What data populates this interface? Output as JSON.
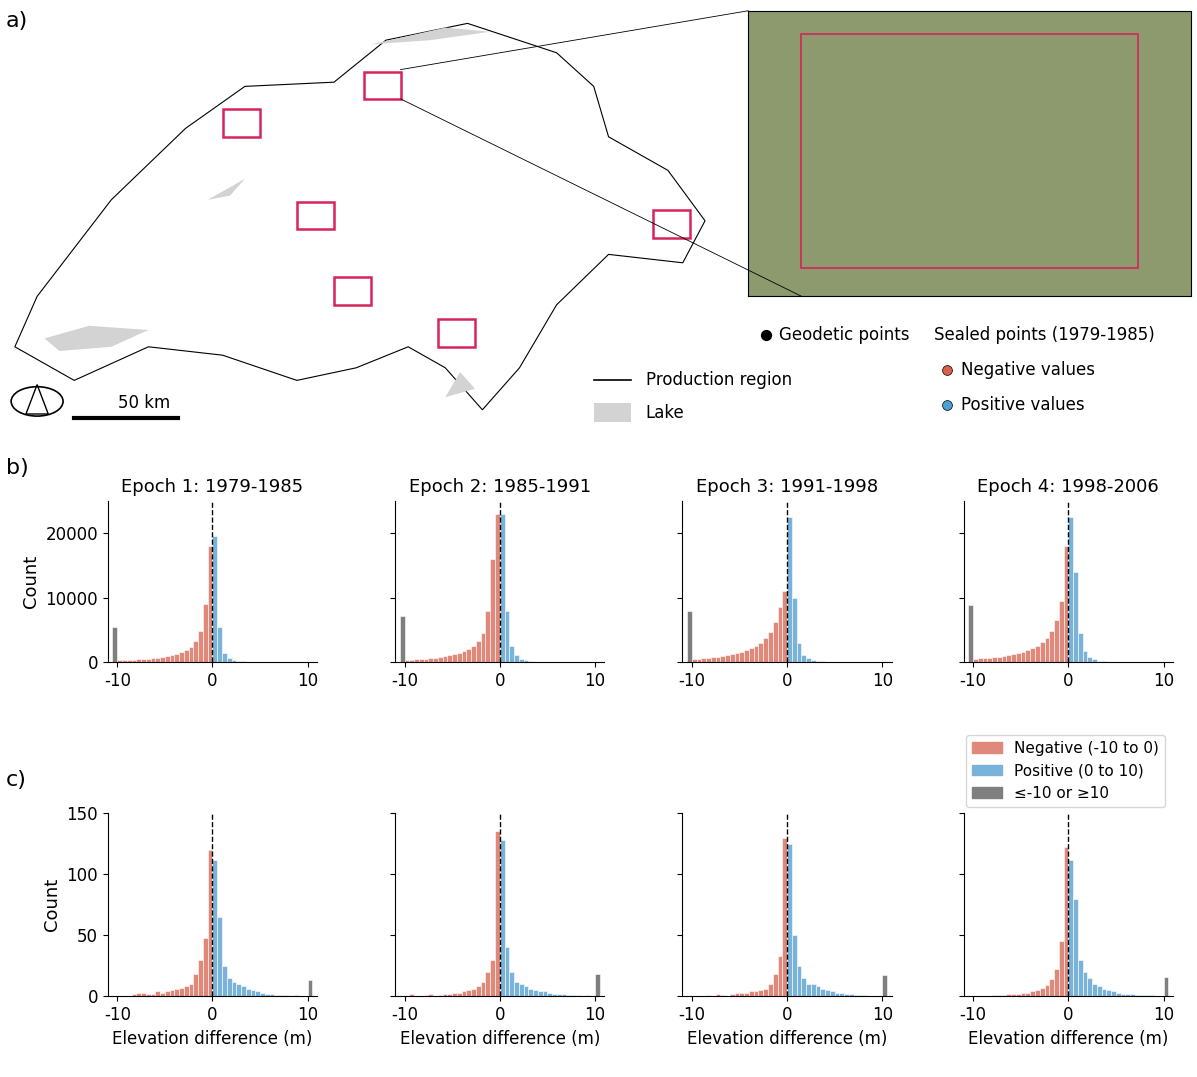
{
  "panel_labels": [
    "a)",
    "b)",
    "c)"
  ],
  "map": {
    "type": "map",
    "geodetic_label": "Geodetic points",
    "sealed_title": "Sealed points (1979-1985)",
    "negative_label": "Negative values",
    "positive_label": "Positive values",
    "region_label": "Production region",
    "lake_label": "Lake",
    "scale_bar": "50 km",
    "negative_color": "#d9604a",
    "positive_color": "#4a9fd4",
    "geodetic_color": "#000000",
    "lake_color": "#d3d3d3",
    "box_color": "#d6245c"
  },
  "chart_data": [
    {
      "type": "histogram",
      "title": "Epoch 1: 1979-1985",
      "ylabel": "Count",
      "xlim": [
        -11,
        11
      ],
      "xticks": [
        -10,
        0,
        10
      ],
      "ylim": [
        0,
        25000
      ],
      "yticks": [
        0,
        10000,
        20000
      ],
      "reference_line": 0,
      "series": [
        {
          "color": "#e0897b",
          "bins": [
            -10,
            -9.5,
            -9,
            -8.5,
            -8,
            -7.5,
            -7,
            -6.5,
            -6,
            -5.5,
            -5,
            -4.5,
            -4,
            -3.5,
            -3,
            -2.5,
            -2,
            -1.5,
            -1,
            -0.5,
            0
          ],
          "counts": [
            300,
            300,
            350,
            400,
            450,
            500,
            550,
            650,
            750,
            850,
            1000,
            1150,
            1300,
            1550,
            1900,
            2400,
            3300,
            4800,
            9000,
            18000
          ]
        },
        {
          "color": "#7ab3d9",
          "bins": [
            0,
            0.5,
            1,
            1.5,
            2,
            2.5,
            3,
            3.5,
            4,
            4.5,
            5,
            5.5,
            6,
            6.5,
            7,
            7.5,
            8,
            8.5,
            9,
            9.5,
            10
          ],
          "counts": [
            19500,
            5500,
            1500,
            700,
            400,
            250,
            150,
            100,
            70,
            50,
            40,
            30,
            20,
            15,
            10,
            10,
            5,
            5,
            5,
            5
          ]
        },
        {
          "color": "#7f7f7f",
          "bins": [
            -10.5,
            -10
          ],
          "counts": [
            5500
          ]
        }
      ]
    },
    {
      "type": "histogram",
      "title": "Epoch 2: 1985-1991",
      "tick_labels": "x",
      "xlim": [
        -11,
        11
      ],
      "xticks": [
        -10,
        0,
        10
      ],
      "ylim": [
        0,
        25000
      ],
      "yticks": [
        0,
        10000,
        20000
      ],
      "reference_line": 0,
      "series": [
        {
          "color": "#e0897b",
          "bins": [
            -10,
            -9.5,
            -9,
            -8.5,
            -8,
            -7.5,
            -7,
            -6.5,
            -6,
            -5.5,
            -5,
            -4.5,
            -4,
            -3.5,
            -3,
            -2.5,
            -2,
            -1.5,
            -1,
            -0.5,
            0
          ],
          "counts": [
            400,
            430,
            470,
            520,
            580,
            650,
            730,
            830,
            950,
            1100,
            1250,
            1450,
            1700,
            2050,
            2500,
            3300,
            4500,
            8000,
            16000,
            23000
          ]
        },
        {
          "color": "#7ab3d9",
          "bins": [
            0,
            0.5,
            1,
            1.5,
            2,
            2.5,
            3,
            3.5,
            4,
            4.5,
            5,
            5.5,
            6,
            6.5,
            7,
            7.5,
            8,
            8.5,
            9,
            9.5,
            10
          ],
          "counts": [
            23000,
            8000,
            2500,
            1100,
            550,
            300,
            200,
            130,
            90,
            60,
            40,
            30,
            25,
            20,
            15,
            10,
            10,
            5,
            5,
            5
          ]
        },
        {
          "color": "#7f7f7f",
          "bins": [
            -10.5,
            -10
          ],
          "counts": [
            7200
          ]
        }
      ]
    },
    {
      "type": "histogram",
      "title": "Epoch 3: 1991-1998",
      "tick_labels": "x",
      "xlim": [
        -11,
        11
      ],
      "xticks": [
        -10,
        0,
        10
      ],
      "ylim": [
        0,
        25000
      ],
      "yticks": [
        0,
        10000,
        20000
      ],
      "reference_line": 0,
      "series": [
        {
          "color": "#e0897b",
          "bins": [
            -10,
            -9.5,
            -9,
            -8.5,
            -8,
            -7.5,
            -7,
            -6.5,
            -6,
            -5.5,
            -5,
            -4.5,
            -4,
            -3.5,
            -3,
            -2.5,
            -2,
            -1.5,
            -1,
            -0.5,
            0
          ],
          "counts": [
            500,
            550,
            600,
            680,
            760,
            850,
            950,
            1080,
            1230,
            1400,
            1600,
            1850,
            2150,
            2500,
            3000,
            3700,
            4700,
            6200,
            8500,
            11000
          ]
        },
        {
          "color": "#7ab3d9",
          "bins": [
            0,
            0.5,
            1,
            1.5,
            2,
            2.5,
            3,
            3.5,
            4,
            4.5,
            5,
            5.5,
            6,
            6.5,
            7,
            7.5,
            8,
            8.5,
            9,
            9.5,
            10
          ],
          "counts": [
            22500,
            10000,
            3000,
            1200,
            600,
            350,
            220,
            150,
            100,
            70,
            50,
            35,
            25,
            20,
            15,
            10,
            10,
            5,
            5,
            5
          ]
        },
        {
          "color": "#7f7f7f",
          "bins": [
            -10.5,
            -10
          ],
          "counts": [
            8000
          ]
        }
      ]
    },
    {
      "type": "histogram",
      "title": "Epoch 4: 1998-2006",
      "tick_labels": "x",
      "xlim": [
        -11,
        11
      ],
      "xticks": [
        -10,
        0,
        10
      ],
      "ylim": [
        0,
        25000
      ],
      "yticks": [
        0,
        10000,
        20000
      ],
      "reference_line": 0,
      "series": [
        {
          "color": "#e0897b",
          "bins": [
            -10,
            -9.5,
            -9,
            -8.5,
            -8,
            -7.5,
            -7,
            -6.5,
            -6,
            -5.5,
            -5,
            -4.5,
            -4,
            -3.5,
            -3,
            -2.5,
            -2,
            -1.5,
            -1,
            -0.5,
            0
          ],
          "counts": [
            550,
            600,
            660,
            730,
            810,
            900,
            1000,
            1130,
            1280,
            1450,
            1650,
            1900,
            2200,
            2600,
            3100,
            3800,
            4800,
            6500,
            9500,
            18000
          ]
        },
        {
          "color": "#7ab3d9",
          "bins": [
            0,
            0.5,
            1,
            1.5,
            2,
            2.5,
            3,
            3.5,
            4,
            4.5,
            5,
            5.5,
            6,
            6.5,
            7,
            7.5,
            8,
            8.5,
            9,
            9.5,
            10
          ],
          "counts": [
            22500,
            14000,
            4500,
            1800,
            800,
            450,
            280,
            180,
            120,
            80,
            55,
            40,
            30,
            20,
            15,
            10,
            10,
            5,
            5,
            5
          ]
        },
        {
          "color": "#7f7f7f",
          "bins": [
            -10.5,
            -10
          ],
          "counts": [
            8800
          ]
        }
      ]
    },
    {
      "type": "histogram",
      "xlabel": "Elevation difference (m)",
      "ylabel": "Count",
      "xlim": [
        -11,
        11
      ],
      "xticks": [
        -10,
        0,
        10
      ],
      "ylim": [
        0,
        150
      ],
      "yticks": [
        0,
        50,
        100,
        150
      ],
      "reference_line": 0,
      "series": [
        {
          "color": "#e0897b",
          "bins": [
            -10,
            -9.5,
            -9,
            -8.5,
            -8,
            -7.5,
            -7,
            -6.5,
            -6,
            -5.5,
            -5,
            -4.5,
            -4,
            -3.5,
            -3,
            -2.5,
            -2,
            -1.5,
            -1,
            -0.5,
            0
          ],
          "counts": [
            0,
            0,
            0,
            2,
            3,
            3,
            2,
            2,
            4,
            3,
            4,
            5,
            6,
            7,
            8,
            10,
            18,
            30,
            48,
            120
          ]
        },
        {
          "color": "#7ab3d9",
          "bins": [
            0,
            0.5,
            1,
            1.5,
            2,
            2.5,
            3,
            3.5,
            4,
            4.5,
            5,
            5.5,
            6,
            6.5,
            7,
            7.5,
            8,
            8.5,
            9,
            9.5,
            10
          ],
          "counts": [
            112,
            65,
            25,
            15,
            12,
            10,
            8,
            6,
            5,
            4,
            3,
            2,
            2,
            1,
            1,
            1,
            0,
            1,
            0,
            0
          ]
        },
        {
          "color": "#7f7f7f",
          "bins": [
            10,
            10.5
          ],
          "counts": [
            13
          ]
        }
      ]
    },
    {
      "type": "histogram",
      "xlabel": "Elevation difference (m)",
      "tick_labels": "x",
      "xlim": [
        -11,
        11
      ],
      "xticks": [
        -10,
        0,
        10
      ],
      "ylim": [
        0,
        150
      ],
      "yticks": [
        0,
        50,
        100,
        150
      ],
      "reference_line": 0,
      "series": [
        {
          "color": "#e0897b",
          "bins": [
            -10,
            -9.5,
            -9,
            -8.5,
            -8,
            -7.5,
            -7,
            -6.5,
            -6,
            -5.5,
            -5,
            -4.5,
            -4,
            -3.5,
            -3,
            -2.5,
            -2,
            -1.5,
            -1,
            -0.5,
            0
          ],
          "counts": [
            0,
            2,
            0,
            0,
            1,
            2,
            0,
            1,
            2,
            2,
            3,
            3,
            4,
            5,
            6,
            8,
            12,
            20,
            30,
            135
          ]
        },
        {
          "color": "#7ab3d9",
          "bins": [
            0,
            0.5,
            1,
            1.5,
            2,
            2.5,
            3,
            3.5,
            4,
            4.5,
            5,
            5.5,
            6,
            6.5,
            7,
            7.5,
            8,
            8.5,
            9,
            9.5,
            10
          ],
          "counts": [
            128,
            40,
            20,
            12,
            10,
            8,
            6,
            5,
            4,
            4,
            3,
            2,
            2,
            2,
            1,
            1,
            1,
            0,
            1,
            0
          ]
        },
        {
          "color": "#7f7f7f",
          "bins": [
            10,
            10.5
          ],
          "counts": [
            18
          ]
        }
      ]
    },
    {
      "type": "histogram",
      "xlabel": "Elevation difference (m)",
      "tick_labels": "x",
      "xlim": [
        -11,
        11
      ],
      "xticks": [
        -10,
        0,
        10
      ],
      "ylim": [
        0,
        150
      ],
      "yticks": [
        0,
        50,
        100,
        150
      ],
      "reference_line": 0,
      "series": [
        {
          "color": "#e0897b",
          "bins": [
            -10,
            -9.5,
            -9,
            -8.5,
            -8,
            -7.5,
            -7,
            -6.5,
            -6,
            -5.5,
            -5,
            -4.5,
            -4,
            -3.5,
            -3,
            -2.5,
            -2,
            -1.5,
            -1,
            -0.5,
            0
          ],
          "counts": [
            0,
            0,
            0,
            1,
            0,
            2,
            1,
            0,
            2,
            3,
            3,
            3,
            4,
            4,
            5,
            6,
            10,
            18,
            33,
            130
          ]
        },
        {
          "color": "#7ab3d9",
          "bins": [
            0,
            0.5,
            1,
            1.5,
            2,
            2.5,
            3,
            3.5,
            4,
            4.5,
            5,
            5.5,
            6,
            6.5,
            7,
            7.5,
            8,
            8.5,
            9,
            9.5,
            10
          ],
          "counts": [
            125,
            50,
            25,
            15,
            10,
            10,
            8,
            6,
            5,
            4,
            3,
            3,
            2,
            2,
            1,
            1,
            1,
            0,
            0,
            0
          ]
        },
        {
          "color": "#7f7f7f",
          "bins": [
            10,
            10.5
          ],
          "counts": [
            17
          ]
        }
      ]
    },
    {
      "type": "histogram",
      "xlabel": "Elevation difference (m)",
      "tick_labels": "x",
      "legend": "upper right",
      "xlim": [
        -11,
        11
      ],
      "xticks": [
        -10,
        0,
        10
      ],
      "ylim": [
        0,
        150
      ],
      "yticks": [
        0,
        50,
        100,
        150
      ],
      "reference_line": 0,
      "series": [
        {
          "name": "Negative (-10 to 0)",
          "color": "#e0897b",
          "bins": [
            -10,
            -9.5,
            -9,
            -8.5,
            -8,
            -7.5,
            -7,
            -6.5,
            -6,
            -5.5,
            -5,
            -4.5,
            -4,
            -3.5,
            -3,
            -2.5,
            -2,
            -1.5,
            -1,
            -0.5,
            0
          ],
          "counts": [
            0,
            0,
            0,
            0,
            1,
            1,
            1,
            2,
            2,
            2,
            3,
            3,
            4,
            5,
            7,
            9,
            14,
            22,
            45,
            122
          ]
        },
        {
          "name": "Positive (0 to 10)",
          "color": "#7ab3d9",
          "bins": [
            0,
            0.5,
            1,
            1.5,
            2,
            2.5,
            3,
            3.5,
            4,
            4.5,
            5,
            5.5,
            6,
            6.5,
            7,
            7.5,
            8,
            8.5,
            9,
            9.5,
            10
          ],
          "counts": [
            112,
            80,
            30,
            20,
            15,
            10,
            8,
            6,
            5,
            4,
            3,
            2,
            2,
            2,
            1,
            1,
            1,
            1,
            0,
            0
          ]
        },
        {
          "name": "≤-10 or ≥10",
          "color": "#7f7f7f",
          "bins": [
            10,
            10.5
          ],
          "counts": [
            16
          ]
        }
      ]
    }
  ]
}
